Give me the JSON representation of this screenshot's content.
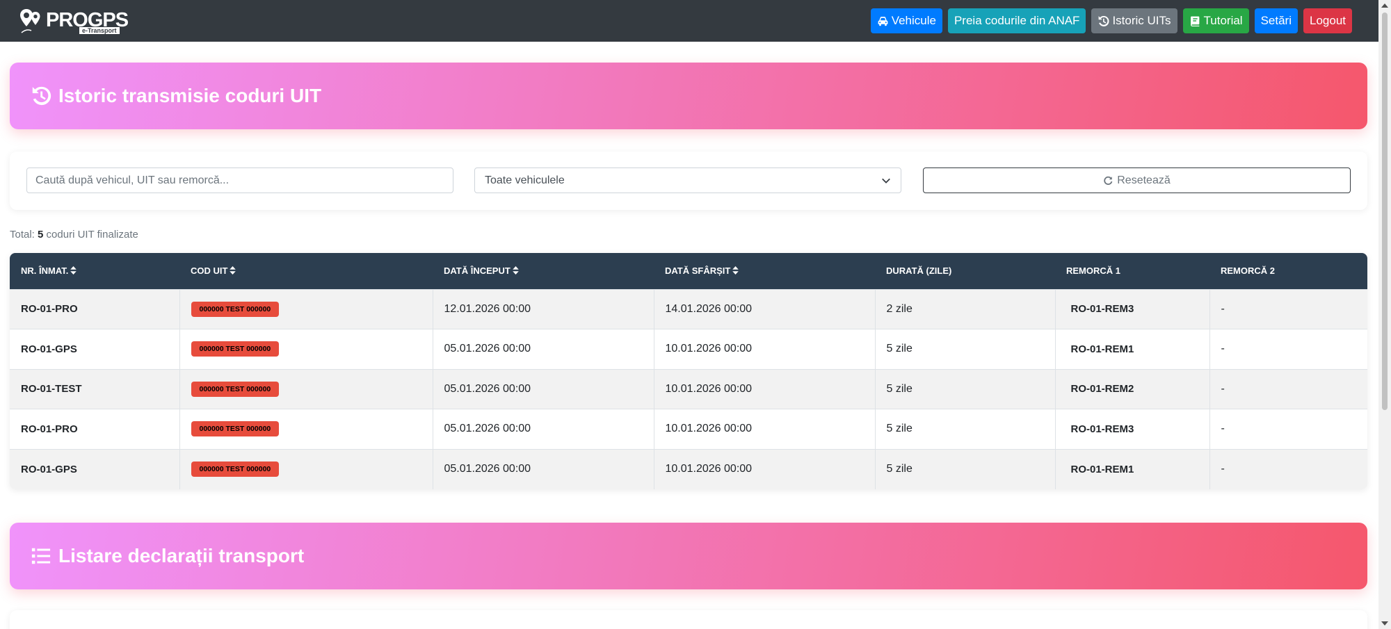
{
  "brand": {
    "name": "PROGPS",
    "sub": "e-Transport"
  },
  "nav": {
    "vehicles": "Vehicule",
    "anaf": "Preia codurile din ANAF",
    "history": "Istoric UITs",
    "tutorial": "Tutorial",
    "settings": "Setări",
    "logout": "Logout"
  },
  "history_banner": {
    "title": "Istoric transmisie coduri UIT",
    "icon": "history-icon"
  },
  "filters": {
    "search_placeholder": "Caută după vehicul, UIT sau remorcă...",
    "vehicle_select": "Toate vehiculele",
    "reset_label": "Resetează"
  },
  "total": {
    "prefix": "Total:",
    "count": "5",
    "suffix": "coduri UIT finalizate"
  },
  "table": {
    "headers": [
      "NR. ÎNMAT.",
      "COD UIT",
      "DATĂ ÎNCEPUT",
      "DATĂ SFÂRȘIT",
      "DURATĂ (ZILE)",
      "REMORCĂ 1",
      "REMORCĂ 2"
    ],
    "rows": [
      {
        "plate": "RO-01-PRO",
        "uit": "000000 TEST 000000",
        "start": "12.01.2026 00:00",
        "end": "14.01.2026 00:00",
        "duration": "2 zile",
        "trailer1": "RO-01-REM3",
        "trailer2": "-"
      },
      {
        "plate": "RO-01-GPS",
        "uit": "000000 TEST 000000",
        "start": "05.01.2026 00:00",
        "end": "10.01.2026 00:00",
        "duration": "5 zile",
        "trailer1": "RO-01-REM1",
        "trailer2": "-"
      },
      {
        "plate": "RO-01-TEST",
        "uit": "000000 TEST 000000",
        "start": "05.01.2026 00:00",
        "end": "10.01.2026 00:00",
        "duration": "5 zile",
        "trailer1": "RO-01-REM2",
        "trailer2": "-"
      },
      {
        "plate": "RO-01-PRO",
        "uit": "000000 TEST 000000",
        "start": "05.01.2026 00:00",
        "end": "10.01.2026 00:00",
        "duration": "5 zile",
        "trailer1": "RO-01-REM3",
        "trailer2": "-"
      },
      {
        "plate": "RO-01-GPS",
        "uit": "000000 TEST 000000",
        "start": "05.01.2026 00:00",
        "end": "10.01.2026 00:00",
        "duration": "5 zile",
        "trailer1": "RO-01-REM1",
        "trailer2": "-"
      }
    ]
  },
  "declarations_banner": {
    "title": "Listare declarații transport",
    "icon": "list-icon"
  },
  "colors": {
    "navbar": "#343a40",
    "gradient_start": "#f093fb",
    "gradient_end": "#f5576c",
    "uit_badge": "#e74c3c",
    "table_header": "#2c3e50"
  }
}
